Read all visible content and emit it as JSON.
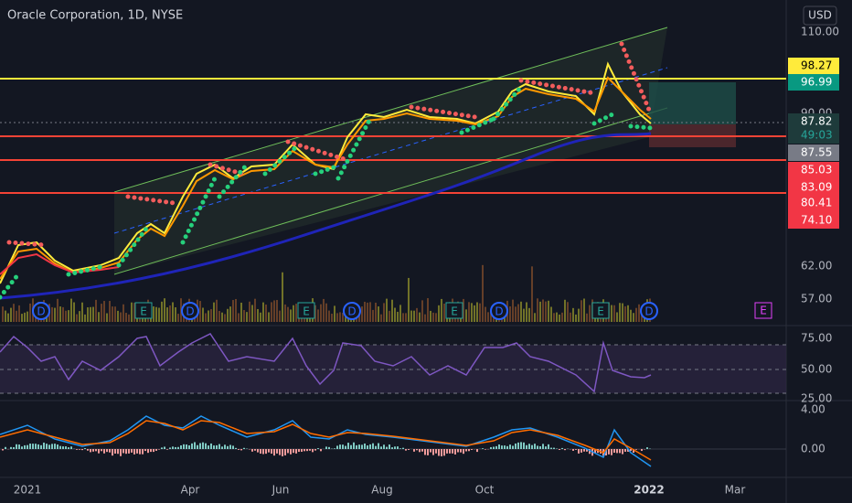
{
  "header": {
    "title": "Oracle Corporation, 1D, NYSE",
    "currency": "USD"
  },
  "price_axis": {
    "labels": [
      "110.00",
      "90.00",
      "62.00",
      "57.00"
    ]
  },
  "price_tags": {
    "resistance": "98.27",
    "target": "96.99",
    "last": "87.82",
    "countdown": "49:03",
    "marker": "87.55",
    "support1": "85.03",
    "support2": "83.09",
    "support3": "80.41",
    "stop": "74.10"
  },
  "rsi_axis": {
    "labels": [
      "75.00",
      "50.00",
      "25.00"
    ]
  },
  "macd_axis": {
    "labels": [
      "4.00",
      "0.00"
    ]
  },
  "time_axis": {
    "labels": [
      "2021",
      "Apr",
      "Jun",
      "Aug",
      "Oct",
      "2022",
      "Mar"
    ]
  },
  "events": {
    "dividend": "D",
    "earnings": "E"
  }
}
